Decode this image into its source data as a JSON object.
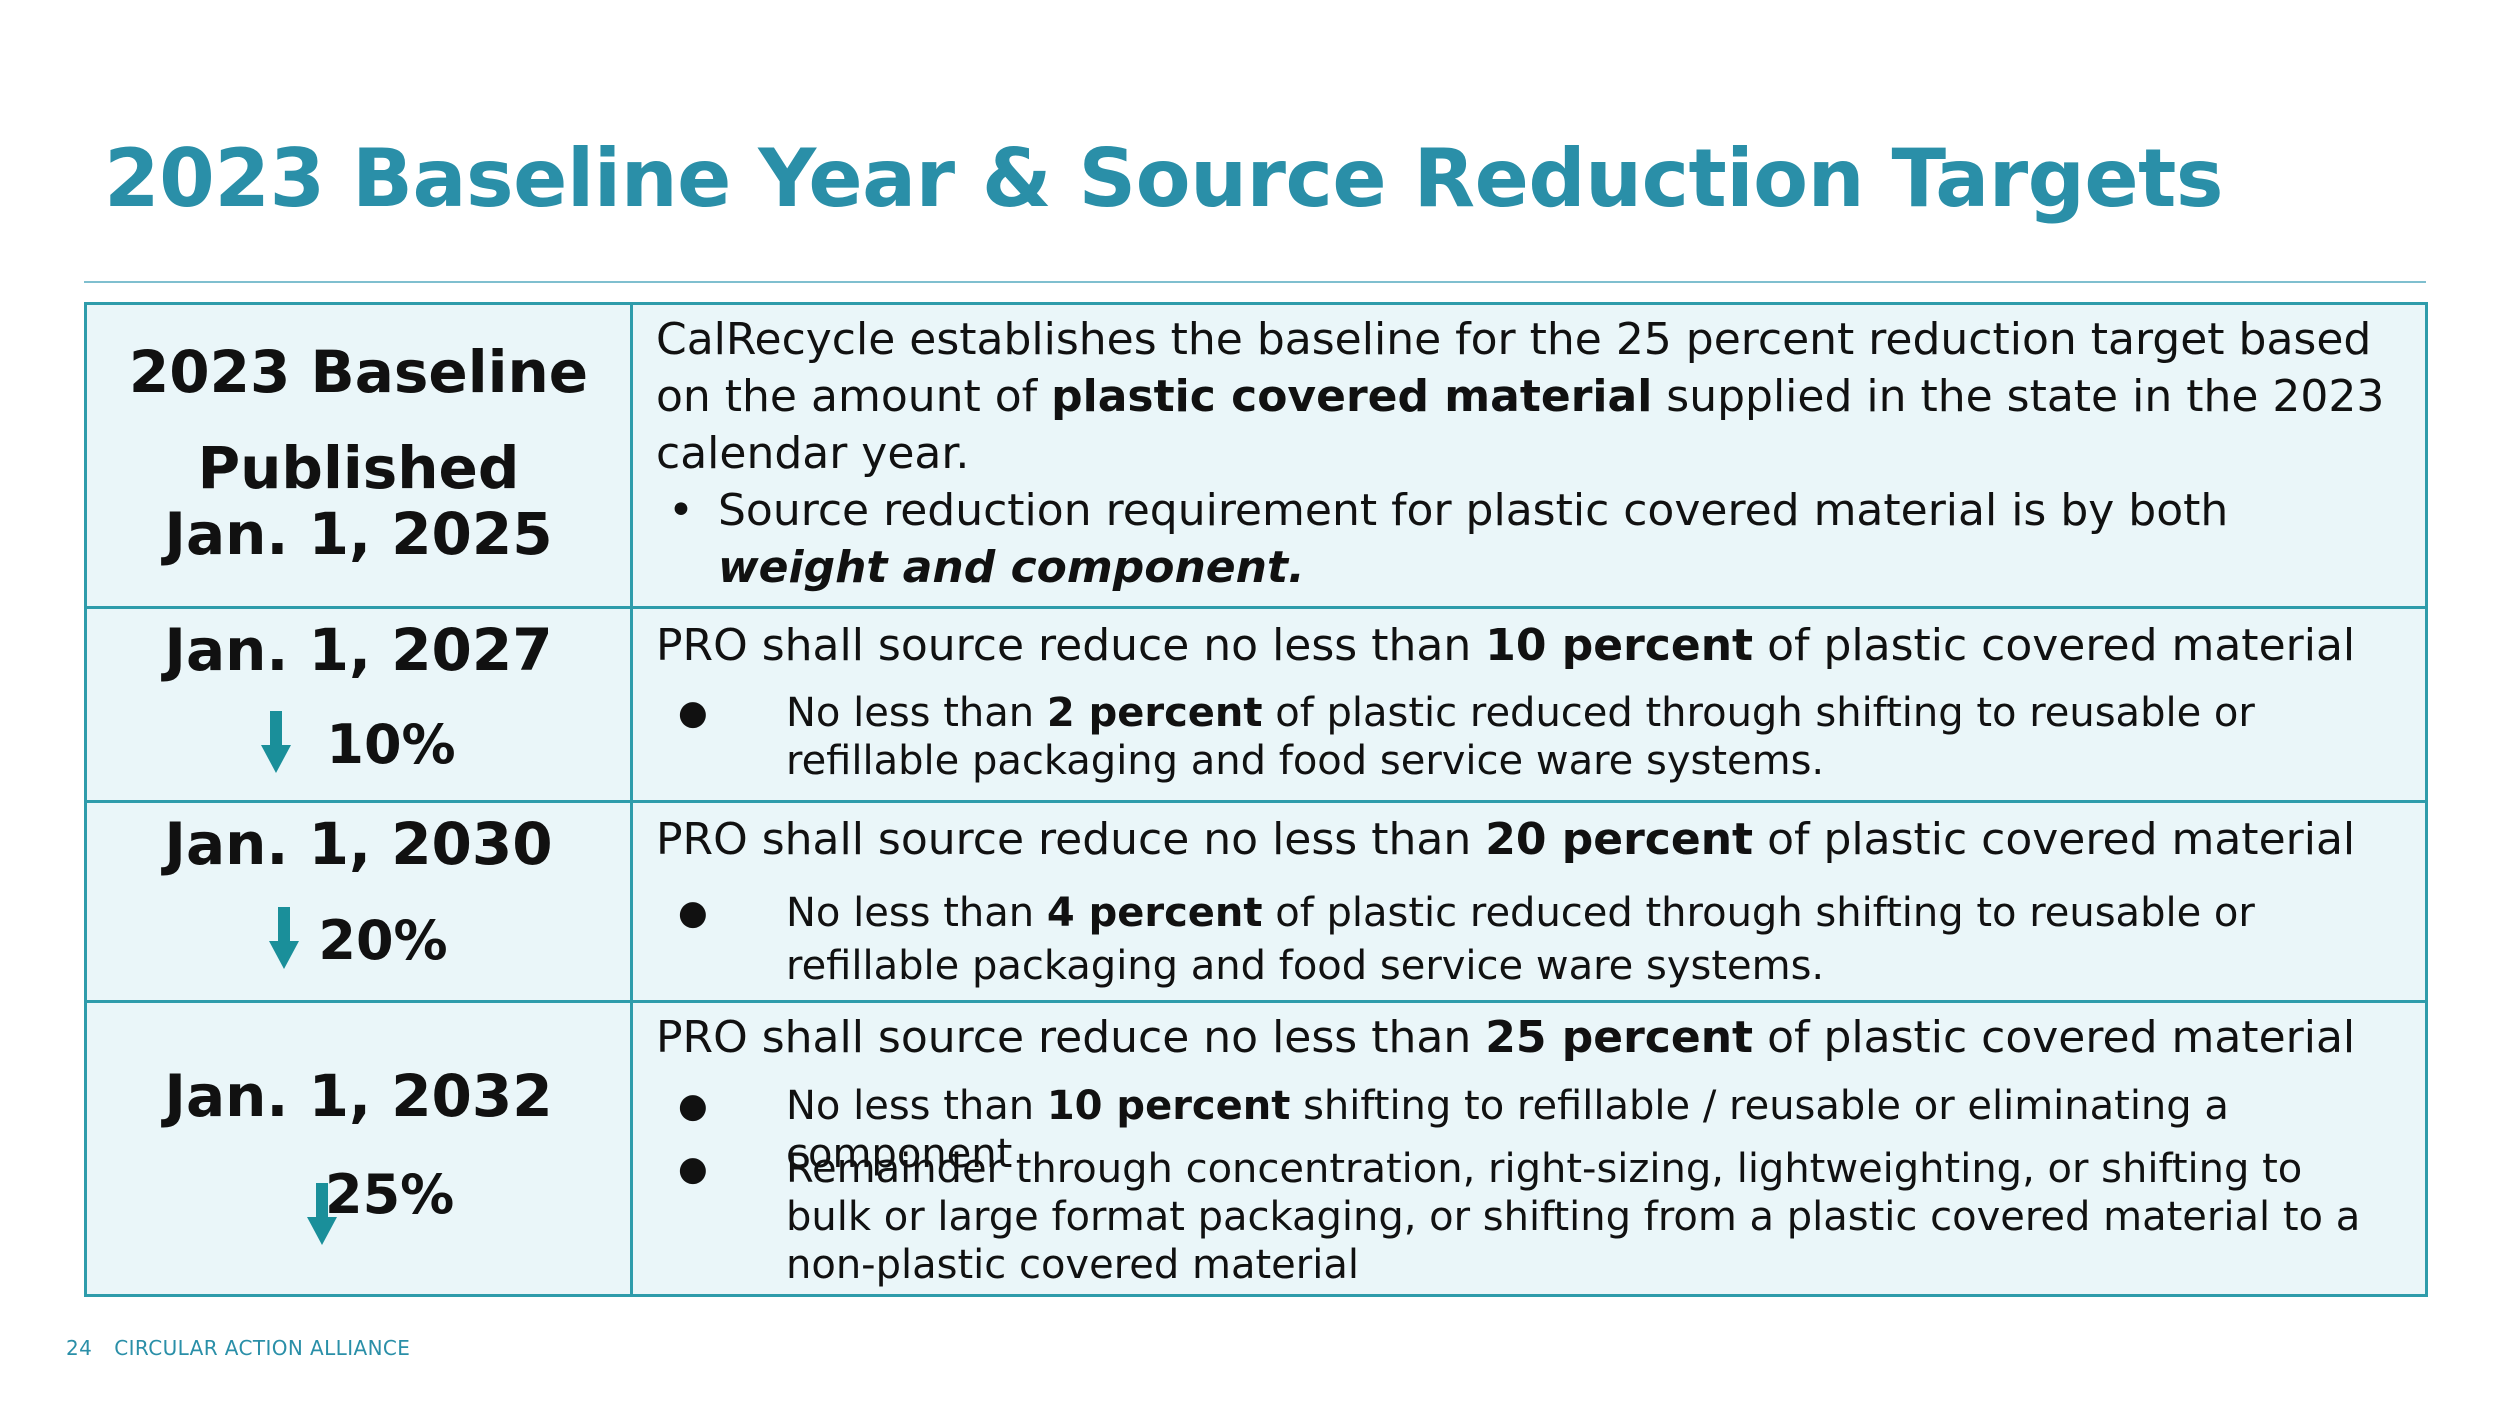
{
  "title": "2023 Baseline Year & Source Reduction Targets",
  "colors": {
    "accent": "#2a8fa8",
    "border": "#2e9cab",
    "cell_bg": "#eaf6f9"
  },
  "rows": [
    {
      "left": {
        "line1": "2023 Baseline",
        "line2": "Published",
        "line3": "Jan. 1, 2025"
      },
      "right": {
        "p_a": "CalRecycle establishes the baseline for the 25 percent reduction target based on the amount of ",
        "p_b": "plastic covered material",
        "p_c": " supplied in the state in the 2023 calendar year.",
        "bullet_a": "Source reduction requirement for plastic covered material is by both ",
        "bullet_b": "weight and component."
      }
    },
    {
      "left": {
        "date": "Jan. 1, 2027",
        "percent": "10%",
        "arrow_icon": "down-arrow-icon"
      },
      "right": {
        "main_a": "PRO shall source reduce no less than ",
        "main_b": "10 percent",
        "main_c": " of plastic covered material",
        "sub_a": "No less than ",
        "sub_b": "2 percent",
        "sub_c": " of plastic reduced through shifting to reusable or refillable packaging and food service ware systems."
      }
    },
    {
      "left": {
        "date": "Jan. 1, 2030",
        "percent": "20%",
        "arrow_icon": "down-arrow-icon"
      },
      "right": {
        "main_a": "PRO shall source reduce no less than ",
        "main_b": "20 percent",
        "main_c": " of plastic covered material",
        "sub_a": "No less than ",
        "sub_b": "4 percent",
        "sub_c": " of plastic reduced through shifting to reusable or refillable packaging and food service ware systems."
      }
    },
    {
      "left": {
        "date": "Jan. 1, 2032",
        "percent": "25%",
        "arrow_icon": "down-arrow-icon"
      },
      "right": {
        "main_a": "PRO shall source reduce no less than ",
        "main_b": "25 percent",
        "main_c": " of plastic covered material",
        "sub1_a": "No less than ",
        "sub1_b": "10 percent",
        "sub1_c": " shifting to refillable / reusable or eliminating a component",
        "sub2": "Remainder through concentration, right-sizing, lightweighting, or shifting to bulk or large format packaging, or shifting from a plastic covered material to a non-plastic covered material"
      }
    }
  ],
  "footer": {
    "page_number": "24",
    "organization": "CIRCULAR ACTION ALLIANCE"
  }
}
